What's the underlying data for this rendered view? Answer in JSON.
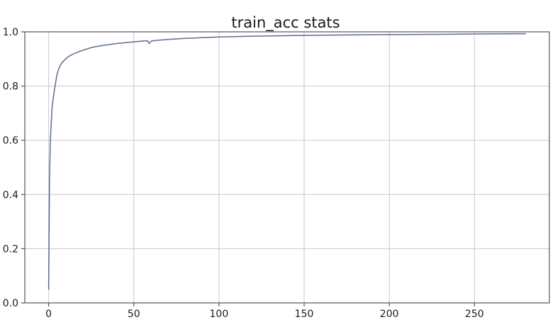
{
  "chart_data": {
    "type": "line",
    "title": "train_acc stats",
    "xlabel": "",
    "ylabel": "",
    "xlim": [
      -14,
      294
    ],
    "ylim": [
      0.0,
      1.0
    ],
    "x_ticks": [
      0,
      50,
      100,
      150,
      200,
      250
    ],
    "y_ticks": [
      0.0,
      0.2,
      0.4,
      0.6,
      0.8,
      1.0
    ],
    "x_tick_labels": [
      "0",
      "50",
      "100",
      "150",
      "200",
      "250"
    ],
    "y_tick_labels": [
      "0.0",
      "0.2",
      "0.4",
      "0.6",
      "0.8",
      "1.0"
    ],
    "grid": true,
    "series": [
      {
        "color": "#5a6f8c",
        "x": [
          0,
          0.5,
          1,
          2,
          3,
          4,
          5,
          6,
          7,
          8,
          10,
          12,
          15,
          20,
          25,
          30,
          40,
          50,
          55,
          58,
          59,
          60,
          62,
          70,
          80,
          100,
          120,
          150,
          180,
          200,
          230,
          250,
          280
        ],
        "y": [
          0.05,
          0.45,
          0.6,
          0.72,
          0.77,
          0.81,
          0.845,
          0.865,
          0.878,
          0.888,
          0.9,
          0.91,
          0.92,
          0.932,
          0.942,
          0.948,
          0.957,
          0.963,
          0.966,
          0.967,
          0.957,
          0.965,
          0.968,
          0.972,
          0.976,
          0.981,
          0.984,
          0.987,
          0.989,
          0.99,
          0.991,
          0.992,
          0.993
        ]
      }
    ]
  }
}
